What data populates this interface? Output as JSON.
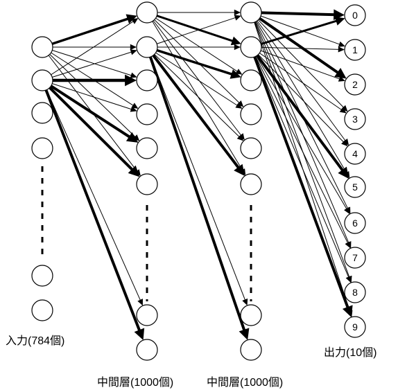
{
  "labels": {
    "input": "入力(784個)",
    "hidden1": "中間層(1000個)",
    "hidden2": "中間層(1000個)",
    "output": "出力(10個)"
  },
  "output_nodes": [
    "0",
    "1",
    "2",
    "3",
    "4",
    "5",
    "6",
    "7",
    "8",
    "9"
  ],
  "colors": {
    "stroke": "#000000",
    "background": "#ffffff"
  }
}
